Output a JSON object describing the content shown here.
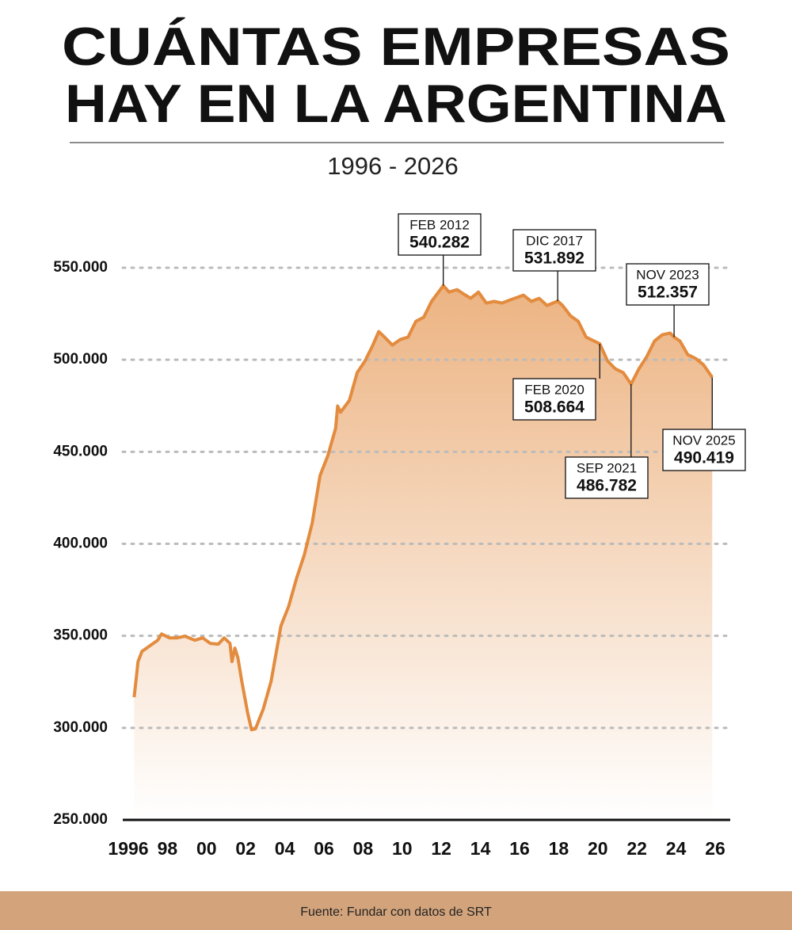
{
  "chart_data": {
    "type": "area",
    "title": [
      "CUÁNTAS EMPRESAS",
      "HAY EN LA ARGENTINA"
    ],
    "subtitle": "1996 - 2026",
    "source": "Fuente: Fundar con datos de SRT",
    "color": "#e38b3e",
    "grid": true,
    "xlim": [
      1996,
      2026
    ],
    "xticks": [
      1996,
      {
        "value": 1998,
        "label": "98"
      },
      {
        "value": 2000,
        "label": "00"
      },
      {
        "value": 2002,
        "label": "02"
      },
      {
        "value": 2004,
        "label": "04"
      },
      {
        "value": 2006,
        "label": "06"
      },
      {
        "value": 2008,
        "label": "08"
      },
      {
        "value": 2010,
        "label": "10"
      },
      {
        "value": 2012,
        "label": "12"
      },
      {
        "value": 2014,
        "label": "14"
      },
      {
        "value": 2016,
        "label": "16"
      },
      {
        "value": 2018,
        "label": "18"
      },
      {
        "value": 2020,
        "label": "20"
      },
      {
        "value": 2022,
        "label": "22"
      },
      {
        "value": 2024,
        "label": "24"
      },
      {
        "value": 2026,
        "label": "26"
      }
    ],
    "ylim": [
      250000,
      550000
    ],
    "yticks": [
      {
        "value": 250000,
        "label": "250.000"
      },
      {
        "value": 300000,
        "label": "300.000"
      },
      {
        "value": 350000,
        "label": "350.000"
      },
      {
        "value": 400000,
        "label": "400.000"
      },
      {
        "value": 450000,
        "label": "450.000"
      },
      {
        "value": 500000,
        "label": "500.000"
      },
      {
        "value": 550000,
        "label": "550.000"
      }
    ],
    "x": [
      1996.3,
      1996.5,
      1996.7,
      1997.1,
      1997.5,
      1997.7,
      1998.1,
      1998.5,
      1998.9,
      1999.4,
      1999.8,
      2000.2,
      2000.6,
      2000.9,
      2001.2,
      2001.3,
      2001.45,
      2001.6,
      2001.8,
      2002.1,
      2002.3,
      2002.5,
      2002.9,
      2003.3,
      2003.8,
      2004.2,
      2004.6,
      2005.0,
      2005.4,
      2005.8,
      2006.2,
      2006.6,
      2006.7,
      2006.85,
      2007.3,
      2007.7,
      2008.1,
      2008.5,
      2008.8,
      2009.1,
      2009.5,
      2009.9,
      2010.3,
      2010.7,
      2011.1,
      2011.5,
      2012.1,
      2012.4,
      2012.8,
      2013.1,
      2013.5,
      2013.9,
      2014.3,
      2014.7,
      2015.1,
      2015.5,
      2016.2,
      2016.6,
      2017.0,
      2017.4,
      2017.95,
      2018.2,
      2018.6,
      2019.0,
      2019.4,
      2020.1,
      2020.5,
      2020.9,
      2021.3,
      2021.7,
      2022.1,
      2022.5,
      2022.9,
      2023.3,
      2023.7,
      2023.9,
      2024.2,
      2024.6,
      2025.0,
      2025.4,
      2025.85
    ],
    "values": [
      316650,
      336000,
      341600,
      344600,
      347600,
      351000,
      348900,
      348900,
      349800,
      347600,
      348900,
      345900,
      345500,
      348900,
      345900,
      336000,
      343300,
      338200,
      325300,
      308100,
      299000,
      299500,
      310200,
      325300,
      355400,
      366100,
      381200,
      394100,
      411300,
      437100,
      447800,
      462900,
      474900,
      471500,
      477900,
      493000,
      499400,
      508000,
      515300,
      512300,
      508000,
      511000,
      512300,
      520900,
      523100,
      531700,
      540282,
      536800,
      538100,
      536000,
      533400,
      536800,
      530800,
      531700,
      530800,
      532500,
      535100,
      531700,
      533400,
      529500,
      531892,
      529500,
      523900,
      520900,
      512300,
      508664,
      499400,
      495100,
      493000,
      486782,
      495100,
      501600,
      510200,
      513600,
      514500,
      512357,
      510200,
      502800,
      500700,
      497300,
      490419
    ],
    "annotations": [
      {
        "label": "FEB 2012",
        "value": 540282,
        "value_label": "540.282",
        "x": 2012.1
      },
      {
        "label": "DIC 2017",
        "value": 531892,
        "value_label": "531.892",
        "x": 2017.95
      },
      {
        "label": "FEB 2020",
        "value": 508664,
        "value_label": "508.664",
        "x": 2020.1
      },
      {
        "label": "SEP 2021",
        "value": 486782,
        "value_label": "486.782",
        "x": 2021.7
      },
      {
        "label": "NOV 2023",
        "value": 512357,
        "value_label": "512.357",
        "x": 2023.9
      },
      {
        "label": "NOV 2025",
        "value": 490419,
        "value_label": "490.419",
        "x": 2025.85
      }
    ]
  }
}
